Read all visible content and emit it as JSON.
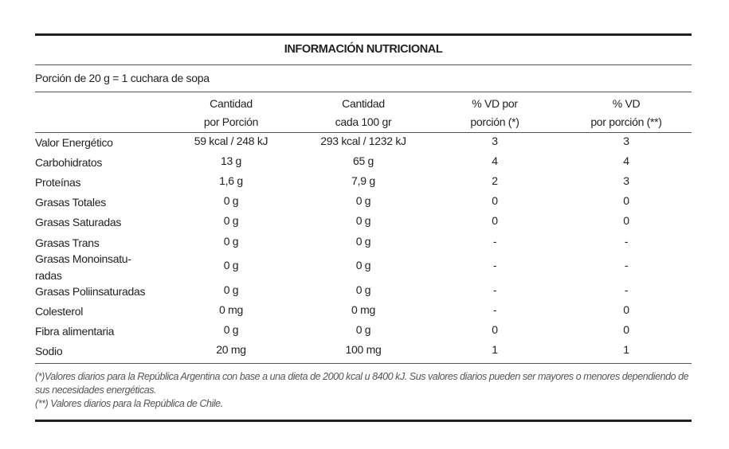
{
  "title": "INFORMACIÓN NUTRICIONAL",
  "portion": "Porción de 20 g = 1 cuchara de sopa",
  "columns": [
    {
      "line1": "Cantidad",
      "line2": "por Porción"
    },
    {
      "line1": "Cantidad",
      "line2": "cada 100 gr"
    },
    {
      "line1": "% VD por",
      "line2": "porción (*)"
    },
    {
      "line1": "% VD",
      "line2": "por porción (**)"
    }
  ],
  "rows": [
    {
      "label": "Valor Energético",
      "values": [
        "59 kcal / 248 kJ",
        "293 kcal / 1232 kJ",
        "3",
        "3"
      ]
    },
    {
      "label": "Carbohidratos",
      "values": [
        "13 g",
        "65 g",
        "4",
        "4"
      ]
    },
    {
      "label": "Proteínas",
      "values": [
        "1,6 g",
        "7,9 g",
        "2",
        "3"
      ]
    },
    {
      "label": "Grasas Totales",
      "values": [
        "0 g",
        "0 g",
        "0",
        "0"
      ]
    },
    {
      "label": "Grasas Saturadas",
      "values": [
        "0 g",
        "0 g",
        "0",
        "0"
      ]
    },
    {
      "label": "Grasas Trans",
      "values": [
        "0 g",
        "0 g",
        "-",
        "-"
      ]
    },
    {
      "label": "Grasas Monoinsatu-radas",
      "values": [
        "0 g",
        "0 g",
        "-",
        "-"
      ]
    },
    {
      "label": "Grasas Poliinsaturadas",
      "values": [
        "0 g",
        "0 g",
        "-",
        "-"
      ]
    },
    {
      "label": "Colesterol",
      "values": [
        "0 mg",
        "0 mg",
        "-",
        "0"
      ]
    },
    {
      "label": "Fibra alimentaria",
      "values": [
        "0 g",
        "0 g",
        "0",
        "0"
      ]
    },
    {
      "label": "Sodio",
      "values": [
        "20 mg",
        "100 mg",
        "1",
        "1"
      ]
    }
  ],
  "footnotes": [
    "(*)Valores diarios para la República Argentina con base a una dieta de 2000 kcal u 8400 kJ. Sus valores diarios pueden ser mayores o menores dependiendo de sus necesidades energéticas.",
    "(**) Valores diarios para la República de Chile."
  ]
}
